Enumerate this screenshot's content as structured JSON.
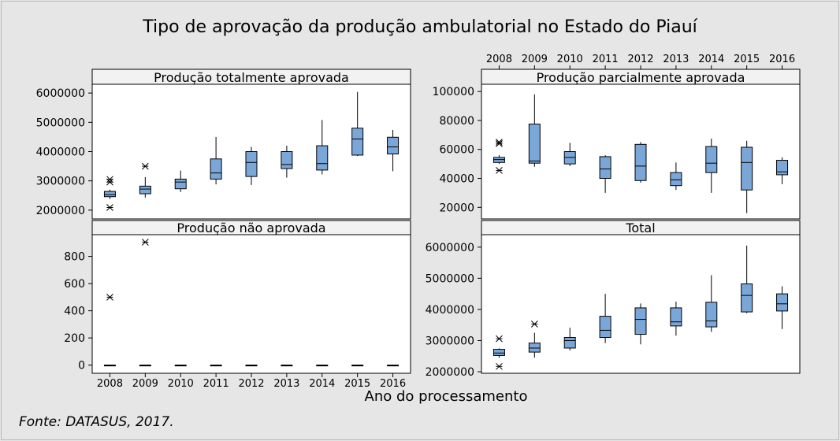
{
  "title": "Tipo de aprovação da produção ambulatorial no Estado do Piauí",
  "x_axis_label": "Ano do processamento",
  "source": "Fonte: DATASUS, 2017.",
  "box_color": "#7ba7d8",
  "chart_data": [
    {
      "type": "boxplot",
      "title": "Produção totalmente aprovada",
      "categories": [
        "2008",
        "2009",
        "2010",
        "2011",
        "2012",
        "2013",
        "2014",
        "2015",
        "2016"
      ],
      "ylim": [
        1700000,
        6300000
      ],
      "yticks": [
        2000000,
        3000000,
        4000000,
        5000000,
        6000000
      ],
      "tick_labels": [
        "2000000",
        "3000000",
        "4000000",
        "5000000",
        "6000000"
      ],
      "boxes": [
        {
          "whislo": 2380000,
          "q1": 2460000,
          "med": 2530000,
          "q3": 2640000,
          "whishi": 2700000,
          "fliers": [
            2090000,
            2960000,
            3050000
          ]
        },
        {
          "whislo": 2430000,
          "q1": 2560000,
          "med": 2720000,
          "q3": 2820000,
          "whishi": 3130000,
          "fliers": [
            3500000
          ]
        },
        {
          "whislo": 2620000,
          "q1": 2730000,
          "med": 2960000,
          "q3": 3060000,
          "whishi": 3350000,
          "fliers": []
        },
        {
          "whislo": 2880000,
          "q1": 3060000,
          "med": 3270000,
          "q3": 3750000,
          "whishi": 4500000,
          "fliers": []
        },
        {
          "whislo": 2860000,
          "q1": 3150000,
          "med": 3630000,
          "q3": 4000000,
          "whishi": 4160000,
          "fliers": []
        },
        {
          "whislo": 3110000,
          "q1": 3420000,
          "med": 3560000,
          "q3": 4000000,
          "whishi": 4200000,
          "fliers": []
        },
        {
          "whislo": 3220000,
          "q1": 3370000,
          "med": 3590000,
          "q3": 4200000,
          "whishi": 5080000,
          "fliers": []
        },
        {
          "whislo": 3850000,
          "q1": 3880000,
          "med": 4430000,
          "q3": 4800000,
          "whishi": 6040000,
          "fliers": []
        },
        {
          "whislo": 3330000,
          "q1": 3920000,
          "med": 4160000,
          "q3": 4490000,
          "whishi": 4740000,
          "fliers": []
        }
      ]
    },
    {
      "type": "boxplot",
      "title": "Produção parcialmente aprovada",
      "categories": [
        "2008",
        "2009",
        "2010",
        "2011",
        "2012",
        "2013",
        "2014",
        "2015",
        "2016"
      ],
      "ylim": [
        12000,
        105000
      ],
      "yticks": [
        20000,
        40000,
        60000,
        80000,
        100000
      ],
      "tick_labels": [
        "20000",
        "40000",
        "60000",
        "80000",
        "100000"
      ],
      "boxes": [
        {
          "whislo": 50000,
          "q1": 51000,
          "med": 53000,
          "q3": 54500,
          "whishi": 56000,
          "fliers": [
            45500,
            64000,
            65000
          ]
        },
        {
          "whislo": 48000,
          "q1": 50500,
          "med": 52000,
          "q3": 77500,
          "whishi": 98000,
          "fliers": []
        },
        {
          "whislo": 48500,
          "q1": 50000,
          "med": 54500,
          "q3": 58500,
          "whishi": 64500,
          "fliers": []
        },
        {
          "whislo": 30000,
          "q1": 40000,
          "med": 46500,
          "q3": 55000,
          "whishi": 56000,
          "fliers": []
        },
        {
          "whislo": 37000,
          "q1": 38500,
          "med": 48500,
          "q3": 63500,
          "whishi": 65000,
          "fliers": []
        },
        {
          "whislo": 32000,
          "q1": 35000,
          "med": 39000,
          "q3": 44000,
          "whishi": 51000,
          "fliers": []
        },
        {
          "whislo": 30000,
          "q1": 44000,
          "med": 50500,
          "q3": 62000,
          "whishi": 67500,
          "fliers": []
        },
        {
          "whislo": 16000,
          "q1": 32000,
          "med": 51000,
          "q3": 61500,
          "whishi": 66000,
          "fliers": []
        },
        {
          "whislo": 36000,
          "q1": 42500,
          "med": 44500,
          "q3": 52500,
          "whishi": 54500,
          "fliers": []
        }
      ]
    },
    {
      "type": "boxplot",
      "title": "Produção não aprovada",
      "categories": [
        "2008",
        "2009",
        "2010",
        "2011",
        "2012",
        "2013",
        "2014",
        "2015",
        "2016"
      ],
      "ylim": [
        -60,
        960
      ],
      "yticks": [
        0,
        200,
        400,
        600,
        800
      ],
      "tick_labels": [
        "0",
        "200",
        "400",
        "600",
        "800"
      ],
      "boxes": [
        {
          "whislo": 0,
          "q1": 0,
          "med": 0,
          "q3": 0,
          "whishi": 0,
          "fliers": [
            500
          ]
        },
        {
          "whislo": 0,
          "q1": 0,
          "med": 0,
          "q3": 0,
          "whishi": 0,
          "fliers": [
            905
          ]
        },
        {
          "whislo": 0,
          "q1": 0,
          "med": 0,
          "q3": 0,
          "whishi": 0,
          "fliers": []
        },
        {
          "whislo": 0,
          "q1": 0,
          "med": 0,
          "q3": 0,
          "whishi": 0,
          "fliers": []
        },
        {
          "whislo": 0,
          "q1": 0,
          "med": 0,
          "q3": 0,
          "whishi": 0,
          "fliers": []
        },
        {
          "whislo": 0,
          "q1": 0,
          "med": 0,
          "q3": 0,
          "whishi": 0,
          "fliers": []
        },
        {
          "whislo": 0,
          "q1": 0,
          "med": 0,
          "q3": 0,
          "whishi": 0,
          "fliers": []
        },
        {
          "whislo": 0,
          "q1": 0,
          "med": 0,
          "q3": 0,
          "whishi": 0,
          "fliers": []
        },
        {
          "whislo": 0,
          "q1": 0,
          "med": 0,
          "q3": 0,
          "whishi": 0,
          "fliers": []
        }
      ]
    },
    {
      "type": "boxplot",
      "title": "Total",
      "categories": [
        "2008",
        "2009",
        "2010",
        "2011",
        "2012",
        "2013",
        "2014",
        "2015",
        "2016"
      ],
      "ylim": [
        1950000,
        6400000
      ],
      "yticks": [
        2000000,
        3000000,
        4000000,
        5000000,
        6000000
      ],
      "tick_labels": [
        "2000000",
        "3000000",
        "4000000",
        "5000000",
        "6000000"
      ],
      "boxes": [
        {
          "whislo": 2450000,
          "q1": 2520000,
          "med": 2600000,
          "q3": 2720000,
          "whishi": 2750000,
          "fliers": [
            2170000,
            3060000
          ]
        },
        {
          "whislo": 2450000,
          "q1": 2630000,
          "med": 2760000,
          "q3": 2920000,
          "whishi": 3250000,
          "fliers": [
            3530000
          ]
        },
        {
          "whislo": 2680000,
          "q1": 2760000,
          "med": 3000000,
          "q3": 3100000,
          "whishi": 3410000,
          "fliers": []
        },
        {
          "whislo": 2920000,
          "q1": 3100000,
          "med": 3330000,
          "q3": 3780000,
          "whishi": 4500000,
          "fliers": []
        },
        {
          "whislo": 2880000,
          "q1": 3200000,
          "med": 3680000,
          "q3": 4050000,
          "whishi": 4190000,
          "fliers": []
        },
        {
          "whislo": 3160000,
          "q1": 3470000,
          "med": 3600000,
          "q3": 4050000,
          "whishi": 4250000,
          "fliers": []
        },
        {
          "whislo": 3280000,
          "q1": 3440000,
          "med": 3630000,
          "q3": 4230000,
          "whishi": 5100000,
          "fliers": []
        },
        {
          "whislo": 3880000,
          "q1": 3920000,
          "med": 4450000,
          "q3": 4820000,
          "whishi": 6050000,
          "fliers": []
        },
        {
          "whislo": 3370000,
          "q1": 3950000,
          "med": 4180000,
          "q3": 4500000,
          "whishi": 4740000,
          "fliers": []
        }
      ]
    }
  ]
}
